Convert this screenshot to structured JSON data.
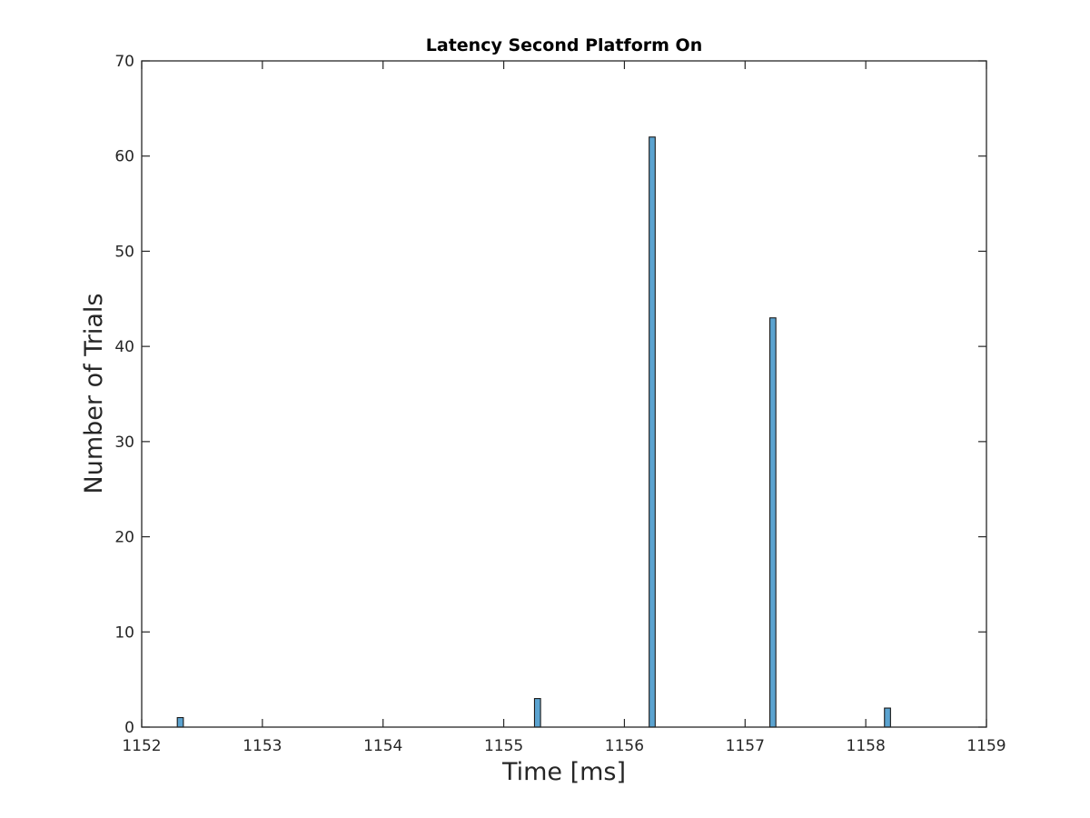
{
  "chart_data": {
    "type": "bar",
    "title": "Latency Second Platform On",
    "xlabel": "Time [ms]",
    "ylabel": "Number of Trials",
    "xlim": [
      1152,
      1159
    ],
    "ylim": [
      0,
      70
    ],
    "xticks": [
      1152,
      1153,
      1154,
      1155,
      1156,
      1157,
      1158,
      1159
    ],
    "yticks": [
      0,
      10,
      20,
      30,
      40,
      50,
      60,
      70
    ],
    "grid": false,
    "bar_color": "#5ba3d0",
    "bin_width": 0.05,
    "x": [
      1152.32,
      1155.28,
      1156.23,
      1157.23,
      1158.18
    ],
    "values": [
      1,
      3,
      62,
      43,
      2
    ]
  }
}
